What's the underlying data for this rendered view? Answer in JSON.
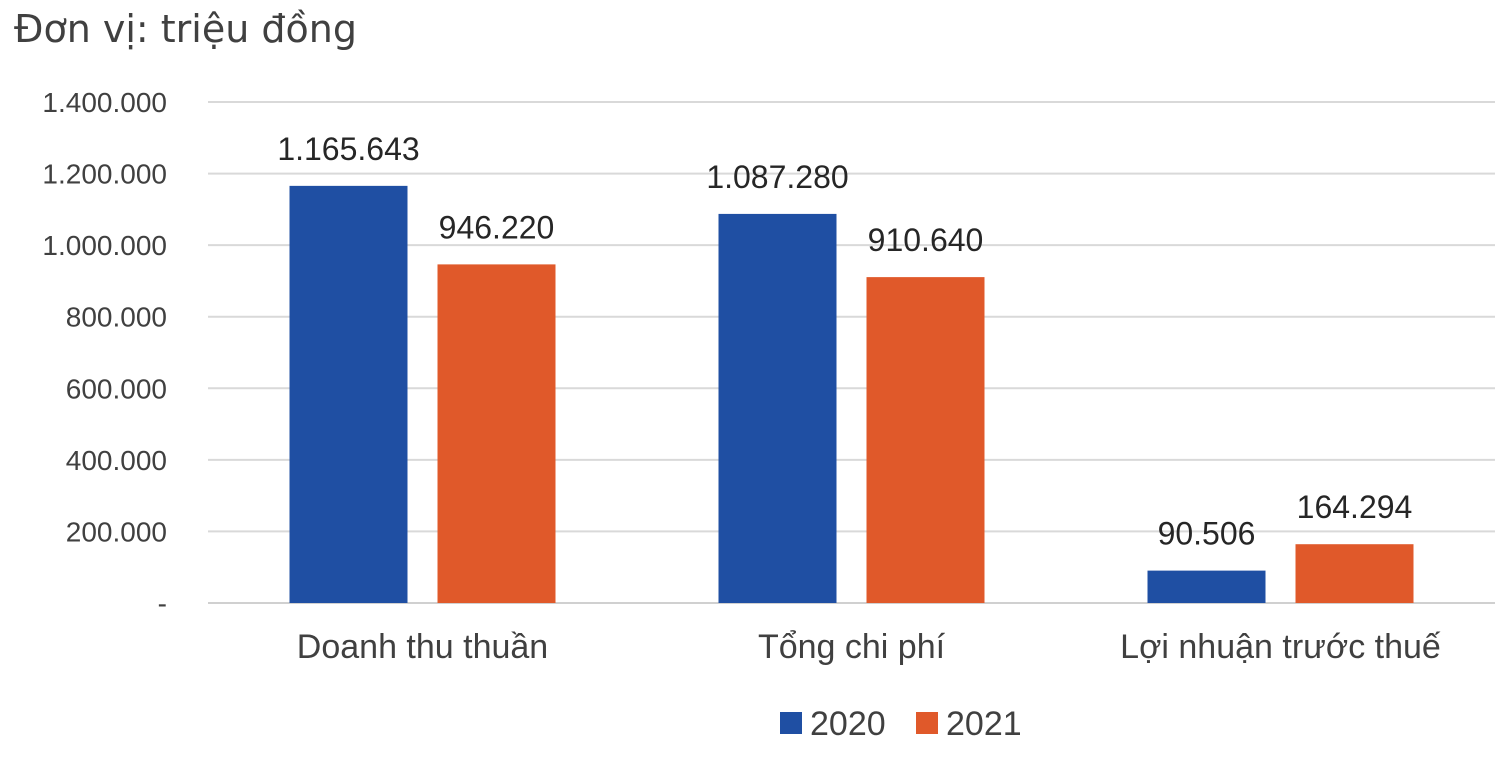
{
  "chart_data": {
    "type": "bar",
    "title": "Đơn vị: triệu đồng",
    "categories": [
      "Doanh thu thuần",
      "Tổng chi phí",
      "Lợi nhuận trước thuế"
    ],
    "series": [
      {
        "name": "2020",
        "color": "#1f4fa3",
        "values": [
          1165643,
          1087280,
          90506
        ],
        "labels": [
          "1.165.643",
          "1.087.280",
          "90.506"
        ]
      },
      {
        "name": "2021",
        "color": "#e0592a",
        "values": [
          946220,
          910640,
          164294
        ],
        "labels": [
          "946.220",
          "910.640",
          "164.294"
        ]
      }
    ],
    "ylim": [
      0,
      1400000
    ],
    "yticks": [
      0,
      200000,
      400000,
      600000,
      800000,
      1000000,
      1200000,
      1400000
    ],
    "ytick_labels": [
      "-",
      "200.000",
      "400.000",
      "600.000",
      "800.000",
      "1.000.000",
      "1.200.000",
      "1.400.000"
    ],
    "grid": true,
    "legend_position": "bottom"
  }
}
